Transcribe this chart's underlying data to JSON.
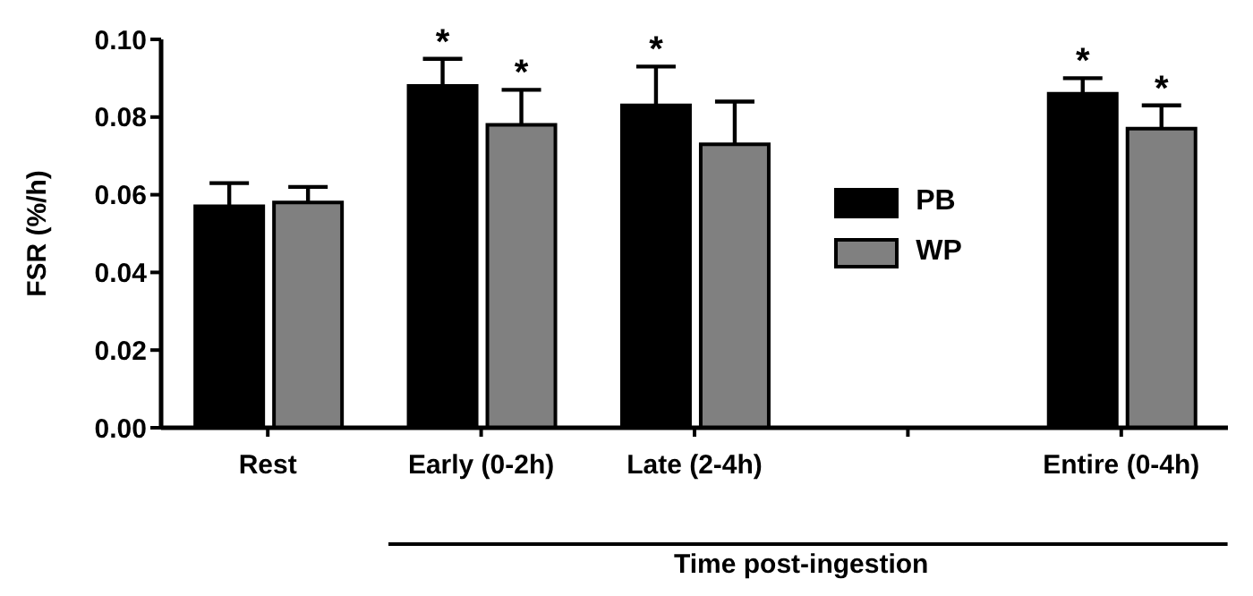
{
  "chart_data": {
    "type": "bar",
    "ylabel": "FSR (%/h)",
    "xlabel": "Time post-ingestion",
    "categories": [
      "Rest",
      "Early (0-2h)",
      "Late (2-4h)",
      null,
      "Entire (0-4h)"
    ],
    "series": [
      {
        "name": "PB",
        "color": "#000000",
        "values": [
          0.057,
          0.088,
          0.083,
          null,
          0.086
        ],
        "errors": [
          [
            0.057,
            0.063
          ],
          [
            0.088,
            0.095
          ],
          [
            0.083,
            0.093
          ],
          null,
          [
            0.086,
            0.09
          ]
        ],
        "value_labels": [
          null,
          "*",
          "*",
          null,
          "*"
        ]
      },
      {
        "name": "WP",
        "color": "#808080",
        "values": [
          0.058,
          0.078,
          0.073,
          null,
          0.077
        ],
        "errors": [
          [
            0.058,
            0.062
          ],
          [
            0.078,
            0.087
          ],
          [
            0.073,
            0.084
          ],
          null,
          [
            0.077,
            0.083
          ]
        ],
        "value_labels": [
          null,
          "*",
          null,
          null,
          "*"
        ]
      }
    ],
    "ylim": [
      0,
      0.1
    ],
    "yticks": [
      {
        "value": 0,
        "label": "0.00"
      },
      {
        "value": 0.02,
        "label": "0.02"
      },
      {
        "value": 0.04,
        "label": "0.04"
      },
      {
        "value": 0.06,
        "label": "0.06"
      },
      {
        "value": 0.08,
        "label": "0.08"
      },
      {
        "value": 0.1,
        "label": "0.10"
      }
    ],
    "legend": "right",
    "grid": false
  }
}
